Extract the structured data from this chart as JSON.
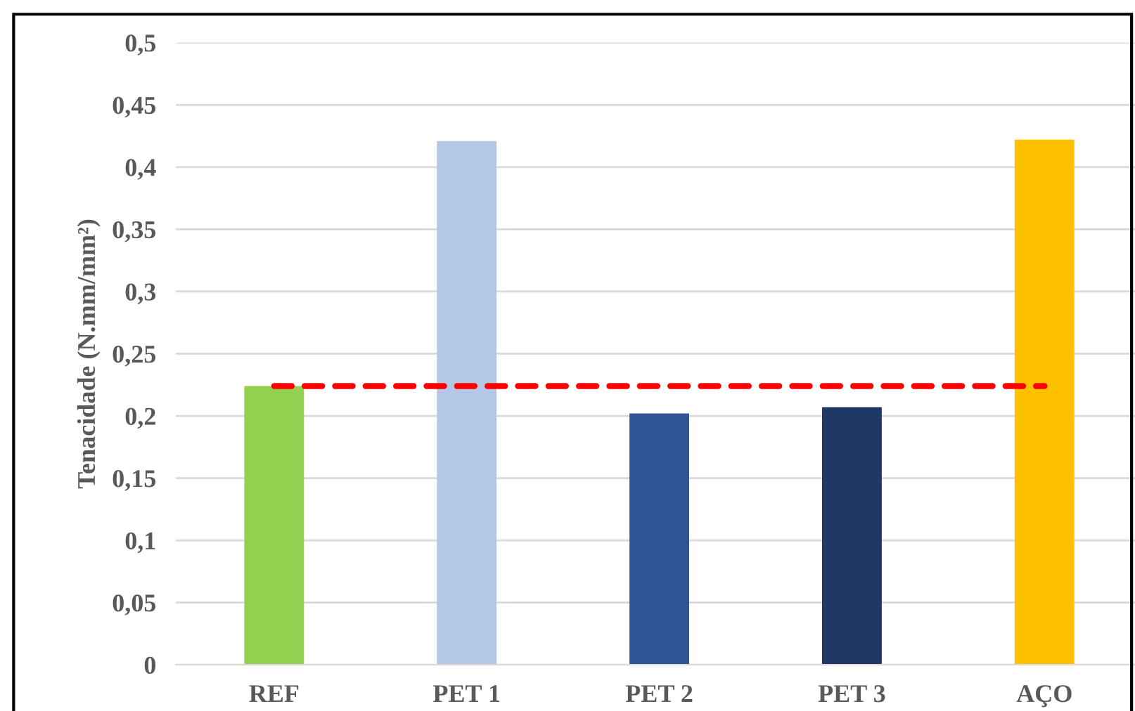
{
  "chart_data": {
    "type": "bar",
    "ylabel": "Tenacidade (N.mm/mm²)",
    "categories": [
      "REF",
      "PET 1",
      "PET 2",
      "PET 3",
      "AÇO"
    ],
    "series": [
      {
        "colors": [
          "#92d050",
          "#b4c7e7",
          "#2f5597",
          "#203864",
          "#ffc000"
        ],
        "values": [
          0.224,
          0.421,
          0.202,
          0.207,
          0.422
        ]
      },
      {
        "type": "line",
        "color": "#ff0000",
        "line_style": "dashed",
        "marker": "none",
        "values": [
          0.224,
          0.224,
          0.224,
          0.224,
          0.224
        ]
      }
    ],
    "ylim": [
      0,
      0.5
    ],
    "yticks": [
      0,
      {
        "value": 0.05,
        "label": "0,05"
      },
      {
        "value": 0.1,
        "label": "0,1"
      },
      {
        "value": 0.15,
        "label": "0,15"
      },
      {
        "value": 0.2,
        "label": "0,2"
      },
      {
        "value": 0.25,
        "label": "0,25"
      },
      {
        "value": 0.3,
        "label": "0,3"
      },
      {
        "value": 0.35,
        "label": "0,35"
      },
      {
        "value": 0.4,
        "label": "0,4"
      },
      {
        "value": 0.45,
        "label": "0,45"
      },
      {
        "value": 0.5,
        "label": "0,5"
      }
    ],
    "grid": "y",
    "legend": false
  }
}
